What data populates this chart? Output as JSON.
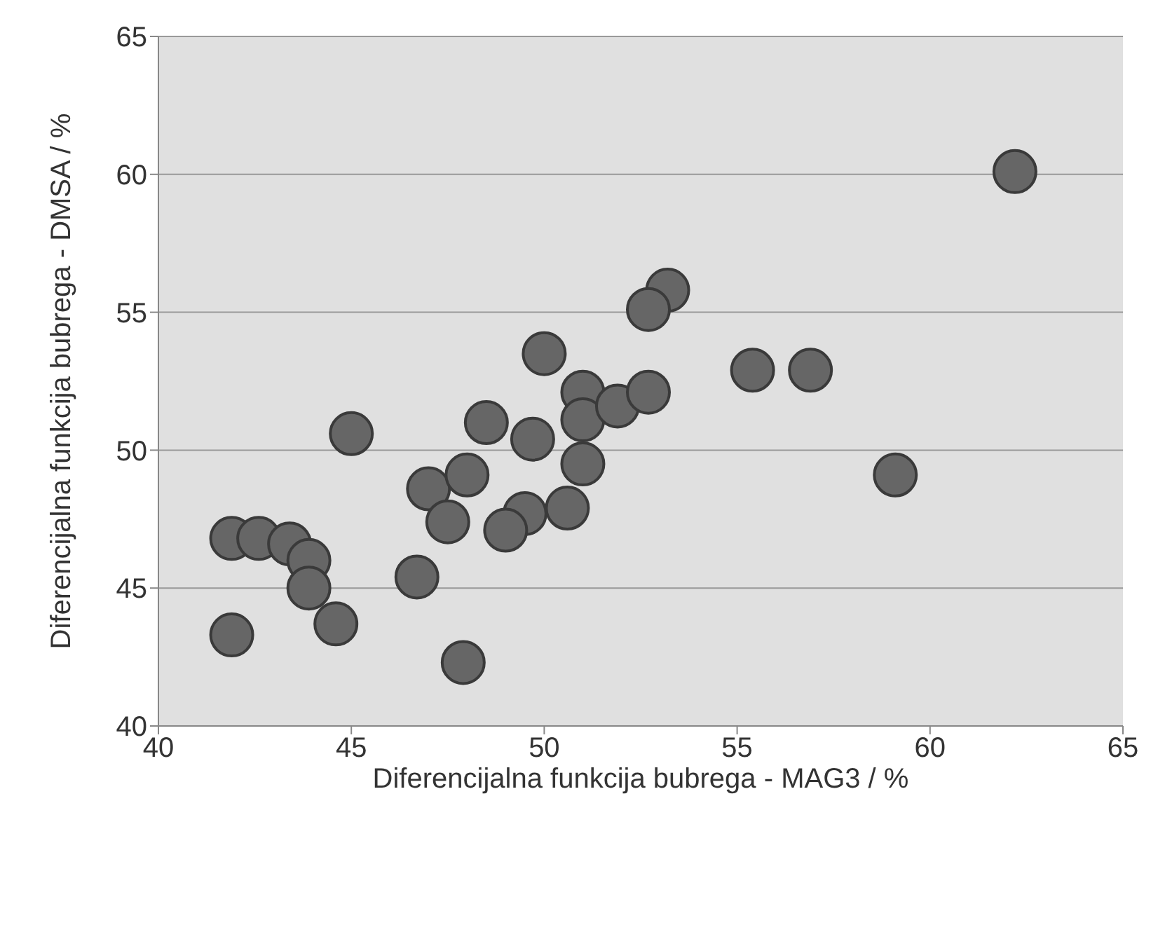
{
  "chart_data": {
    "type": "scatter",
    "xlabel": "Diferencijalna funkcija bubrega - MAG3 / %",
    "ylabel": "Diferencijalna funkcija bubrega - DMSA / %",
    "x": [
      41.9,
      42.6,
      43.4,
      43.9,
      43.9,
      41.9,
      44.6,
      45.0,
      46.7,
      47.0,
      48.0,
      47.5,
      47.9,
      48.5,
      49.7,
      49.5,
      49.0,
      50.0,
      51.0,
      51.0,
      51.0,
      50.6,
      51.9,
      53.2,
      52.7,
      52.7,
      55.4,
      56.9,
      59.1,
      62.2
    ],
    "values": [
      46.8,
      46.8,
      46.6,
      46.0,
      45.0,
      43.3,
      43.7,
      50.6,
      45.4,
      48.6,
      49.1,
      47.4,
      42.3,
      51.0,
      50.4,
      47.7,
      47.1,
      53.5,
      52.1,
      51.1,
      49.5,
      47.9,
      51.6,
      55.8,
      55.1,
      52.1,
      52.9,
      52.9,
      49.1,
      60.1
    ],
    "color": "#666666",
    "marker": "circle",
    "xlim": [
      40,
      65
    ],
    "xticks": [
      40,
      45,
      50,
      55,
      60,
      65
    ],
    "ylim": [
      40,
      65
    ],
    "yticks": [
      40,
      45,
      50,
      55,
      60,
      65
    ],
    "grid": "y"
  }
}
